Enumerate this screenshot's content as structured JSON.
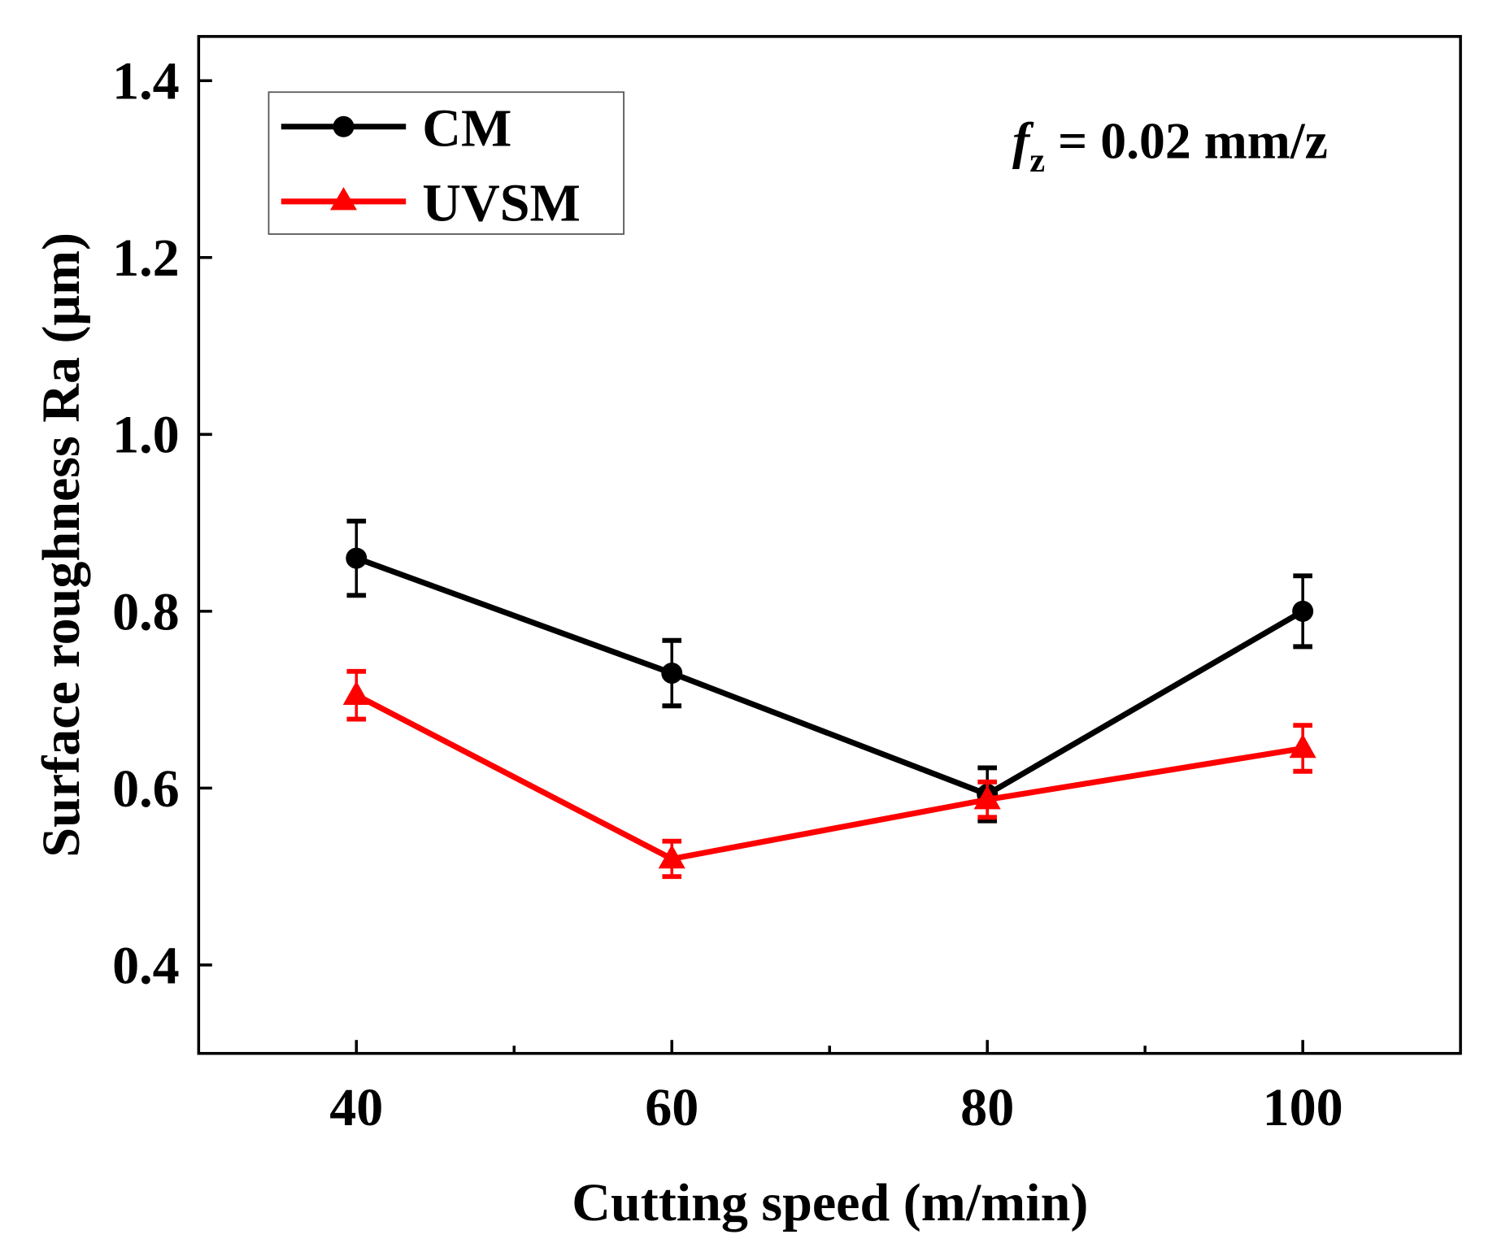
{
  "chart_data": {
    "type": "line",
    "title": "",
    "xlabel": "Cutting speed (m/min)",
    "ylabel": "Surface roughness Ra (μm)",
    "annotation": {
      "symbol": "f",
      "subscript": "z",
      "text": " = 0.02 mm/z"
    },
    "x": [
      40,
      60,
      80,
      100
    ],
    "xlim": [
      30,
      110
    ],
    "ylim": [
      0.3,
      1.45
    ],
    "xticks": [
      40,
      60,
      80,
      100
    ],
    "xtick_labels": [
      "40",
      "60",
      "80",
      "100"
    ],
    "x_minor_ticks": [
      50,
      70,
      90
    ],
    "yticks": [
      0.4,
      0.6,
      0.8,
      1.0,
      1.2,
      1.4
    ],
    "ytick_labels": [
      "0.4",
      "0.6",
      "0.8",
      "1.0",
      "1.2",
      "1.4"
    ],
    "grid": false,
    "legend_position": "top-left",
    "series": [
      {
        "name": "CM",
        "color": "#000000",
        "marker": "circle",
        "values": [
          0.86,
          0.73,
          0.593,
          0.8
        ],
        "errors": [
          0.042,
          0.037,
          0.03,
          0.04
        ]
      },
      {
        "name": "UVSM",
        "color": "#ff0000",
        "marker": "triangle",
        "values": [
          0.705,
          0.52,
          0.587,
          0.645
        ],
        "errors": [
          0.027,
          0.02,
          0.02,
          0.026
        ]
      }
    ]
  }
}
